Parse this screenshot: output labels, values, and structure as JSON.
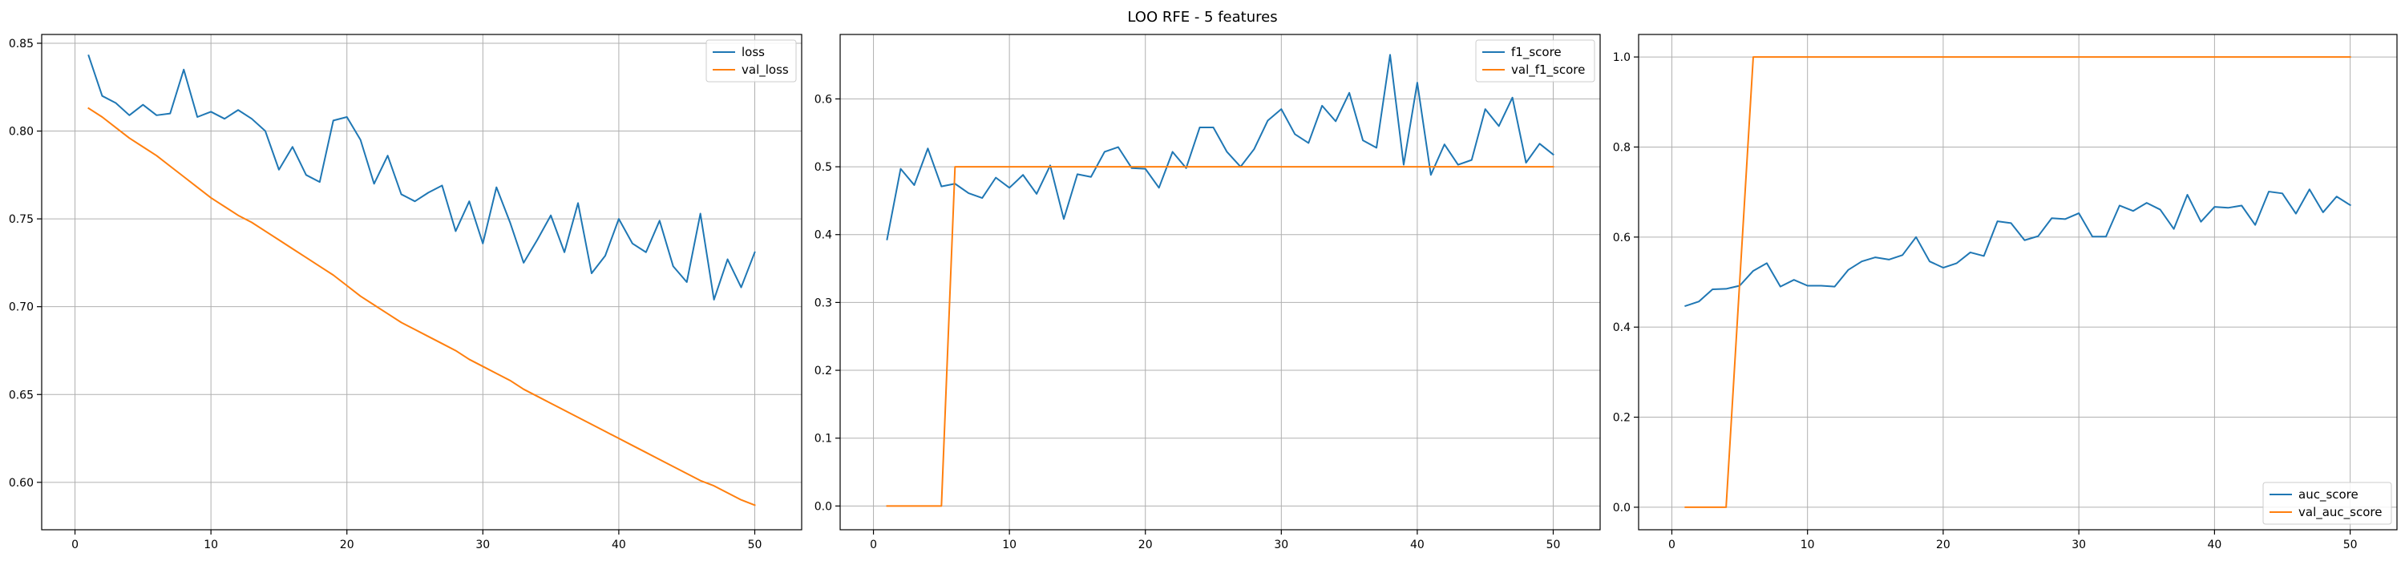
{
  "figure": {
    "title": "LOO RFE - 5 features"
  },
  "colors": {
    "series_blue": "#1f77b4",
    "series_orange": "#ff7f0e",
    "grid": "#b0b0b0"
  },
  "chart_data": [
    {
      "type": "line",
      "title": "",
      "xlabel": "",
      "ylabel": "",
      "xlim": [
        -2.45,
        53.45
      ],
      "ylim": [
        0.573,
        0.855
      ],
      "grid": true,
      "legend": "top-right",
      "xticks": [
        0,
        10,
        20,
        30,
        40,
        50
      ],
      "yticks": [
        0.6,
        0.65,
        0.7,
        0.75,
        0.8,
        0.85
      ],
      "ytick_labels": [
        "0.60",
        "0.65",
        "0.70",
        "0.75",
        "0.80",
        "0.85"
      ],
      "x": [
        1,
        2,
        3,
        4,
        5,
        6,
        7,
        8,
        9,
        10,
        11,
        12,
        13,
        14,
        15,
        16,
        17,
        18,
        19,
        20,
        21,
        22,
        23,
        24,
        25,
        26,
        27,
        28,
        29,
        30,
        31,
        32,
        33,
        34,
        35,
        36,
        37,
        38,
        39,
        40,
        41,
        42,
        43,
        44,
        45,
        46,
        47,
        48,
        49,
        50
      ],
      "series": [
        {
          "name": "loss",
          "color": "#1f77b4",
          "values": [
            0.843,
            0.82,
            0.816,
            0.809,
            0.815,
            0.809,
            0.81,
            0.835,
            0.808,
            0.811,
            0.807,
            0.812,
            0.807,
            0.8,
            0.778,
            0.791,
            0.775,
            0.771,
            0.806,
            0.808,
            0.795,
            0.77,
            0.786,
            0.764,
            0.76,
            0.765,
            0.769,
            0.743,
            0.76,
            0.736,
            0.768,
            0.748,
            0.725,
            0.738,
            0.752,
            0.731,
            0.759,
            0.719,
            0.729,
            0.75,
            0.736,
            0.731,
            0.749,
            0.723,
            0.714,
            0.753,
            0.704,
            0.727,
            0.711,
            0.731
          ]
        },
        {
          "name": "val_loss",
          "color": "#ff7f0e",
          "values": [
            0.813,
            0.808,
            0.802,
            0.796,
            0.791,
            0.786,
            0.78,
            0.774,
            0.768,
            0.762,
            0.757,
            0.752,
            0.748,
            0.743,
            0.738,
            0.733,
            0.728,
            0.723,
            0.718,
            0.712,
            0.706,
            0.701,
            0.696,
            0.691,
            0.687,
            0.683,
            0.679,
            0.675,
            0.67,
            0.666,
            0.662,
            0.658,
            0.653,
            0.649,
            0.645,
            0.641,
            0.637,
            0.633,
            0.629,
            0.625,
            0.621,
            0.617,
            0.613,
            0.609,
            0.605,
            0.601,
            0.598,
            0.594,
            0.59,
            0.587
          ]
        }
      ]
    },
    {
      "type": "line",
      "title": "",
      "xlabel": "",
      "ylabel": "",
      "xlim": [
        -2.45,
        53.45
      ],
      "ylim": [
        -0.035,
        0.695
      ],
      "grid": true,
      "legend": "top-right",
      "xticks": [
        0,
        10,
        20,
        30,
        40,
        50
      ],
      "yticks": [
        0.0,
        0.1,
        0.2,
        0.3,
        0.4,
        0.5,
        0.6
      ],
      "ytick_labels": [
        "0.0",
        "0.1",
        "0.2",
        "0.3",
        "0.4",
        "0.5",
        "0.6"
      ],
      "x": [
        1,
        2,
        3,
        4,
        5,
        6,
        7,
        8,
        9,
        10,
        11,
        12,
        13,
        14,
        15,
        16,
        17,
        18,
        19,
        20,
        21,
        22,
        23,
        24,
        25,
        26,
        27,
        28,
        29,
        30,
        31,
        32,
        33,
        34,
        35,
        36,
        37,
        38,
        39,
        40,
        41,
        42,
        43,
        44,
        45,
        46,
        47,
        48,
        49,
        50
      ],
      "series": [
        {
          "name": "f1_score",
          "color": "#1f77b4",
          "values": [
            0.393,
            0.497,
            0.473,
            0.527,
            0.471,
            0.475,
            0.461,
            0.454,
            0.484,
            0.469,
            0.488,
            0.46,
            0.502,
            0.423,
            0.489,
            0.485,
            0.522,
            0.529,
            0.498,
            0.497,
            0.469,
            0.522,
            0.498,
            0.558,
            0.558,
            0.522,
            0.5,
            0.526,
            0.568,
            0.585,
            0.548,
            0.535,
            0.59,
            0.567,
            0.609,
            0.539,
            0.528,
            0.665,
            0.503,
            0.624,
            0.488,
            0.533,
            0.503,
            0.51,
            0.585,
            0.56,
            0.602,
            0.506,
            0.534,
            0.518
          ]
        },
        {
          "name": "val_f1_score",
          "color": "#ff7f0e",
          "values": [
            0,
            0,
            0,
            0,
            0,
            0.5,
            0.5,
            0.5,
            0.5,
            0.5,
            0.5,
            0.5,
            0.5,
            0.5,
            0.5,
            0.5,
            0.5,
            0.5,
            0.5,
            0.5,
            0.5,
            0.5,
            0.5,
            0.5,
            0.5,
            0.5,
            0.5,
            0.5,
            0.5,
            0.5,
            0.5,
            0.5,
            0.5,
            0.5,
            0.5,
            0.5,
            0.5,
            0.5,
            0.5,
            0.5,
            0.5,
            0.5,
            0.5,
            0.5,
            0.5,
            0.5,
            0.5,
            0.5,
            0.5,
            0.5
          ]
        }
      ]
    },
    {
      "type": "line",
      "title": "",
      "xlabel": "",
      "ylabel": "",
      "xlim": [
        -2.45,
        53.45
      ],
      "ylim": [
        -0.05,
        1.05
      ],
      "grid": true,
      "legend": "bottom-right",
      "xticks": [
        0,
        10,
        20,
        30,
        40,
        50
      ],
      "yticks": [
        0.0,
        0.2,
        0.4,
        0.6,
        0.8,
        1.0
      ],
      "ytick_labels": [
        "0.0",
        "0.2",
        "0.4",
        "0.6",
        "0.8",
        "1.0"
      ],
      "x": [
        1,
        2,
        3,
        4,
        5,
        6,
        7,
        8,
        9,
        10,
        11,
        12,
        13,
        14,
        15,
        16,
        17,
        18,
        19,
        20,
        21,
        22,
        23,
        24,
        25,
        26,
        27,
        28,
        29,
        30,
        31,
        32,
        33,
        34,
        35,
        36,
        37,
        38,
        39,
        40,
        41,
        42,
        43,
        44,
        45,
        46,
        47,
        48,
        49,
        50
      ],
      "series": [
        {
          "name": "auc_score",
          "color": "#1f77b4",
          "values": [
            0.447,
            0.457,
            0.484,
            0.485,
            0.492,
            0.525,
            0.542,
            0.49,
            0.505,
            0.492,
            0.492,
            0.49,
            0.527,
            0.546,
            0.555,
            0.55,
            0.56,
            0.6,
            0.546,
            0.532,
            0.542,
            0.566,
            0.558,
            0.635,
            0.631,
            0.593,
            0.602,
            0.642,
            0.64,
            0.653,
            0.601,
            0.601,
            0.67,
            0.658,
            0.676,
            0.661,
            0.618,
            0.694,
            0.634,
            0.667,
            0.665,
            0.67,
            0.627,
            0.701,
            0.697,
            0.652,
            0.706,
            0.655,
            0.69,
            0.671
          ]
        },
        {
          "name": "val_auc_score",
          "color": "#ff7f0e",
          "values": [
            0,
            0,
            0,
            0,
            0.5,
            1,
            1,
            1,
            1,
            1,
            1,
            1,
            1,
            1,
            1,
            1,
            1,
            1,
            1,
            1,
            1,
            1,
            1,
            1,
            1,
            1,
            1,
            1,
            1,
            1,
            1,
            1,
            1,
            1,
            1,
            1,
            1,
            1,
            1,
            1,
            1,
            1,
            1,
            1,
            1,
            1,
            1,
            1,
            1,
            1
          ]
        }
      ]
    }
  ]
}
